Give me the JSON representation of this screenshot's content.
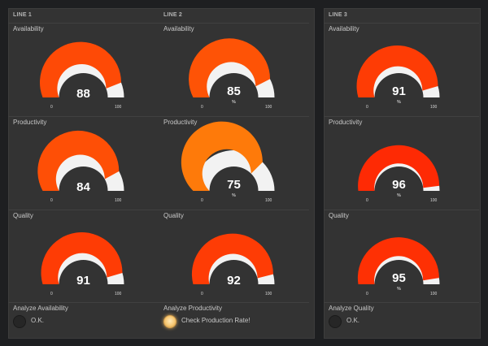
{
  "lines": [
    {
      "title": "LINE 1",
      "metrics": [
        {
          "label": "Availability",
          "value": 88,
          "unit": "",
          "min": "0",
          "max": "100",
          "color": "#fe4a06"
        },
        {
          "label": "Productivity",
          "value": 84,
          "unit": "",
          "min": "0",
          "max": "100",
          "color": "#fe4f06"
        },
        {
          "label": "Quality",
          "value": 91,
          "unit": "",
          "min": "0",
          "max": "100",
          "color": "#fe3c05"
        }
      ],
      "analyze": {
        "label": "Analyze Availability",
        "status": "O.K.",
        "led_on": false
      }
    },
    {
      "title": "LINE 2",
      "metrics": [
        {
          "label": "Availability",
          "value": 85,
          "unit": "%",
          "min": "0",
          "max": "100",
          "color": "#fe5306"
        },
        {
          "label": "Productivity",
          "value": 75,
          "unit": "%",
          "min": "0",
          "max": "100",
          "color": "#fe7a0a"
        },
        {
          "label": "Quality",
          "value": 92,
          "unit": "",
          "min": "0",
          "max": "100",
          "color": "#fe3c05"
        }
      ],
      "analyze": {
        "label": "Analyze Productivity",
        "status": "Check Production Rate!",
        "led_on": true
      }
    },
    {
      "title": "LINE 3",
      "metrics": [
        {
          "label": "Availability",
          "value": 91,
          "unit": "%",
          "min": "0",
          "max": "100",
          "color": "#fe3c05"
        },
        {
          "label": "Productivity",
          "value": 96,
          "unit": "%",
          "min": "0",
          "max": "100",
          "color": "#fe2a04"
        },
        {
          "label": "Quality",
          "value": 95,
          "unit": "%",
          "min": "0",
          "max": "100",
          "color": "#fe3004"
        }
      ],
      "analyze": {
        "label": "Analyze Quality",
        "status": "O.K.",
        "led_on": false
      }
    }
  ],
  "colors": {
    "track": "#f2f2f2",
    "panel": "#333333",
    "background": "#1e1f21"
  }
}
